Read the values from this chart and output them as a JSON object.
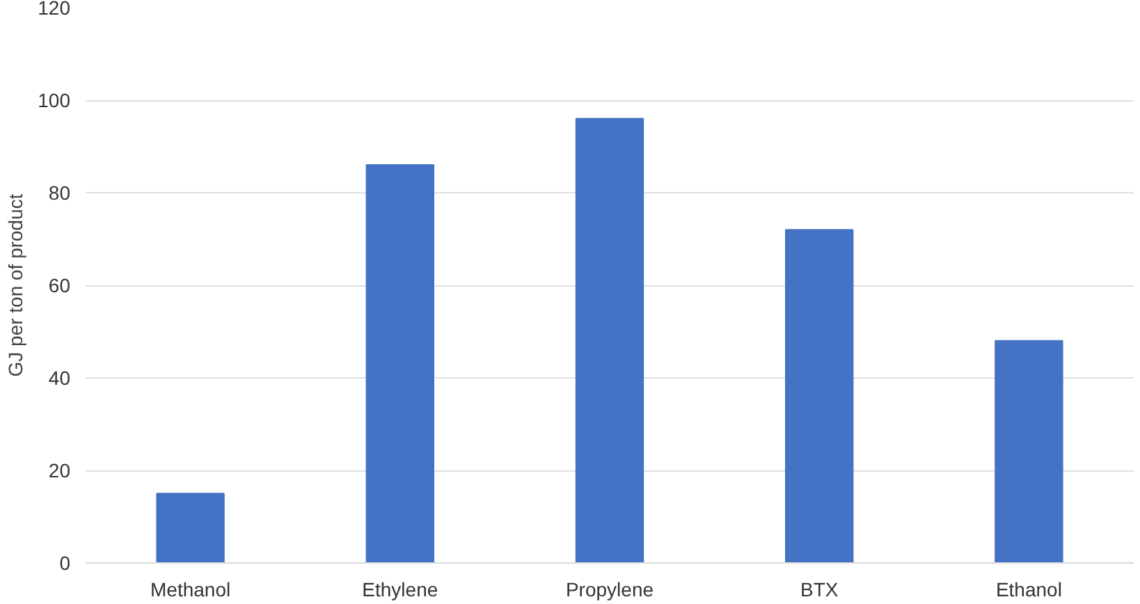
{
  "chart_data": {
    "type": "bar",
    "ylabel": "GJ per ton of product",
    "categories": [
      "Methanol",
      "Ethylene",
      "Propylene",
      "BTX",
      "Ethanol"
    ],
    "values": [
      15,
      86,
      96,
      72,
      48
    ],
    "color": "#4472c4",
    "ylim": [
      0,
      120
    ],
    "yticks": [
      0,
      20,
      40,
      60,
      80,
      100,
      120
    ],
    "grid": "y"
  }
}
